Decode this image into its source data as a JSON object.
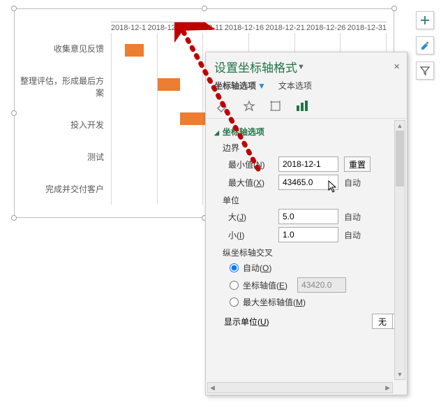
{
  "chart": {
    "type": "bar",
    "x_ticks": [
      "2018-12-1",
      "2018-12-6",
      "2018-12-11",
      "2018-12-16",
      "2018-12-21",
      "2018-12-26",
      "2018-12-31"
    ],
    "y_categories": [
      "收集意见反馈",
      "整理评估，形成最后方案",
      "投入开发",
      "测试",
      "完成并交付客户"
    ],
    "bars": [
      {
        "start_pct": 0,
        "len_pct": 6,
        "color": "transparent",
        "overlay_start_pct": 5,
        "overlay_len_pct": 7
      },
      {
        "start_pct": 0,
        "len_pct": 12,
        "color": "transparent",
        "overlay_start_pct": 17,
        "overlay_len_pct": 8
      },
      {
        "start_pct": 0,
        "len_pct": 25,
        "color": "transparent",
        "overlay_start_pct": 25,
        "overlay_len_pct": 22
      },
      {
        "start_pct": 0,
        "len_pct": 0,
        "color": "transparent",
        "overlay_start_pct": 0,
        "overlay_len_pct": 0
      },
      {
        "start_pct": 0,
        "len_pct": 0,
        "color": "transparent",
        "overlay_start_pct": 0,
        "overlay_len_pct": 0
      }
    ],
    "bar_color": "#ed7d31",
    "grid_color": "#d9d9d9",
    "axis_color": "#bfbfbf",
    "font_color": "#595959"
  },
  "side_icons": {
    "add": "＋",
    "brush": "brush",
    "filter": "filter"
  },
  "pane": {
    "title": "设置坐标轴格式",
    "close": "×",
    "dropdown_glyph": "▼",
    "tabs": {
      "axis_options": "坐标轴选项",
      "text_options": "文本选项"
    },
    "section": "坐标轴选项",
    "bounds": {
      "label": "边界",
      "min_label": "最小值(N)",
      "min_value": "2018-12-1",
      "min_action": "重置",
      "max_label": "最大值(X)",
      "max_value": "43465.0",
      "max_action": "自动"
    },
    "units": {
      "label": "单位",
      "major_label": "大(J)",
      "major_value": "5.0",
      "major_action": "自动",
      "minor_label": "小(I)",
      "minor_value": "1.0",
      "minor_action": "自动"
    },
    "cross": {
      "label": "纵坐标轴交叉",
      "auto": "自动(O)",
      "at_value": "坐标轴值(E)",
      "at_value_value": "43420.0",
      "at_max": "最大坐标轴值(M)"
    },
    "display_unit": {
      "label": "显示单位(U)",
      "value": "无"
    },
    "colors": {
      "panel_bg": "#f3f3f3",
      "accent": "#217346",
      "link_blue": "#2a8dd4",
      "input_border": "#ababab"
    }
  },
  "annotation_arrow": {
    "color": "#c00000"
  }
}
